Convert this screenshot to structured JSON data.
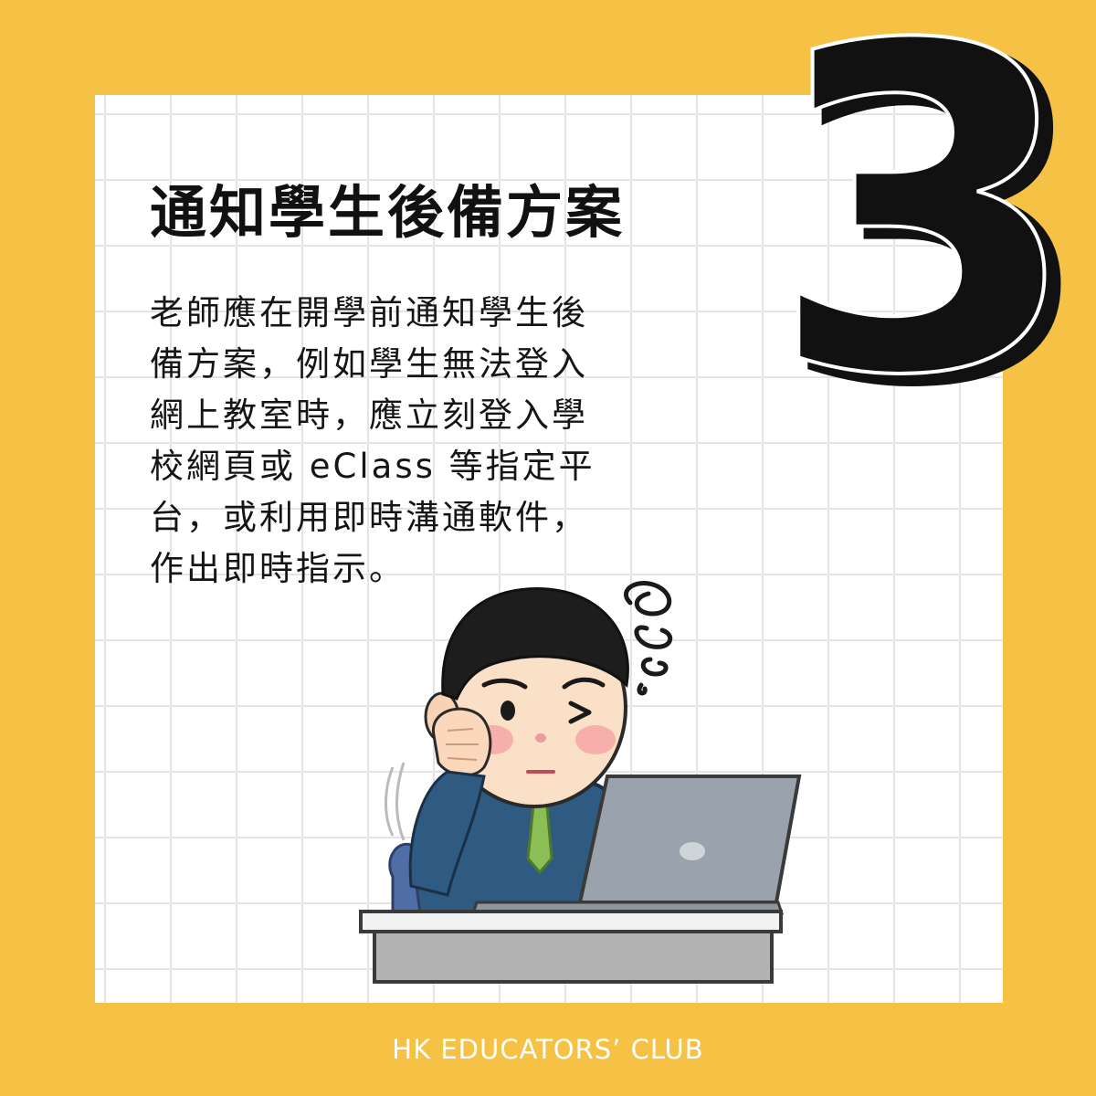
{
  "slide": {
    "number": "3",
    "title": "通知學生後備方案",
    "body_lines": [
      "老師應在開學前通知學生後",
      "備方案，例如學生無法登入",
      "網上教室時，應立刻登入學",
      "校網頁或 eClass 等指定平",
      "台，或利用即時溝通軟件，",
      "作出即時指示。"
    ],
    "footer": "HK EDUCATORS’ CLUB"
  },
  "colors": {
    "background": "#f6c246",
    "card": "#ffffff",
    "text": "#111111"
  },
  "icons": {
    "illustration": "confused-man-at-laptop-illustration",
    "number": "number-three-graphic"
  }
}
